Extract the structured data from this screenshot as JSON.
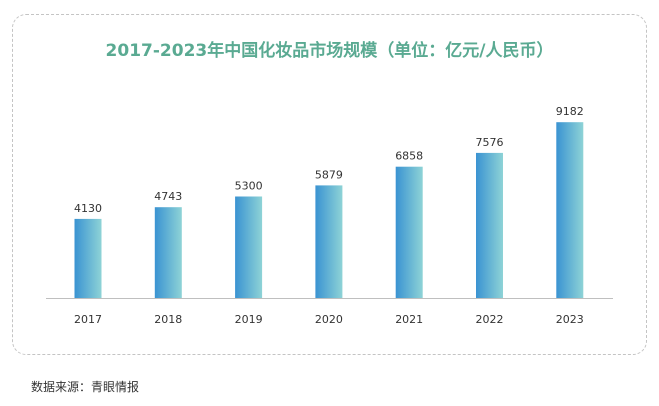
{
  "chart_data": {
    "type": "bar",
    "title": "2017-2023年中国化妆品市场规模（单位：亿元/人民币）",
    "categories": [
      "2017",
      "2018",
      "2019",
      "2020",
      "2021",
      "2022",
      "2023"
    ],
    "values": [
      4130,
      4743,
      5300,
      5879,
      6858,
      7576,
      9182
    ],
    "data_labels": [
      "4130",
      "4743",
      "5300",
      "5879",
      "6858",
      "7576",
      "9182"
    ],
    "xlabel": "",
    "ylabel": "",
    "ylim": [
      0,
      9400
    ],
    "grid": false,
    "legend": "none",
    "colors": {
      "bar_left": "#3a93d2",
      "bar_right": "#8ed3d6",
      "title": "#5aaa92",
      "axis": "#bfbfbf"
    }
  },
  "source": "数据来源：青眼情报"
}
